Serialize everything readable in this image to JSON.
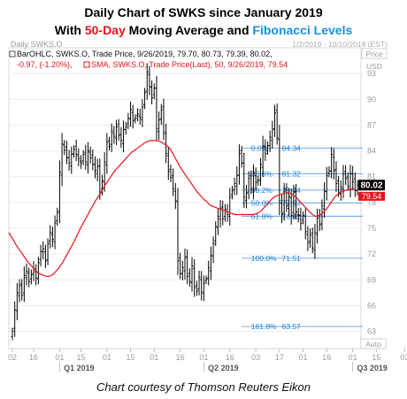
{
  "header": {
    "line1": "Daily Chart of SWKS since January 2019",
    "line2_pre": "With ",
    "line2_ma": "50-Day",
    "line2_mid": " Moving Average and ",
    "line2_fib": "Fibonacci Levels"
  },
  "caption": "Chart courtesy of Thomson Reuters Eikon",
  "chart_data": {
    "type": "ohlc",
    "instrument": "Daily SWKS.O",
    "date_range": "1/2/2019 - 10/10/2019 (EST)",
    "price_button": "Price",
    "currency": "USD",
    "auto_label": "Auto",
    "legend": [
      {
        "name": "BarOHLC",
        "text": "BarOHLC, SWKS.O, Trade Price, 9/26/2019, 79.70, 80.73, 79.39, 80.02,",
        "text2": "-0.97, (-1.20%),",
        "color": "#000000"
      },
      {
        "name": "SMA",
        "text": "SMA, SWKS.O, Trade Price(Last), 50, 9/26/2019, 79.54",
        "color": "#e8141a"
      }
    ],
    "ylim": [
      61,
      96
    ],
    "y_ticks": [
      63,
      66,
      69,
      72,
      75,
      78,
      81,
      84,
      87,
      90,
      93
    ],
    "x_ticks": [
      {
        "label": "02",
        "idx": 0
      },
      {
        "label": "16",
        "idx": 9
      },
      {
        "label": "01",
        "idx": 20
      },
      {
        "label": "15",
        "idx": 29
      },
      {
        "label": "01",
        "idx": 40
      },
      {
        "label": "15",
        "idx": 50
      },
      {
        "label": "01",
        "idx": 60
      },
      {
        "label": "16",
        "idx": 71
      },
      {
        "label": "01",
        "idx": 81
      },
      {
        "label": "16",
        "idx": 92
      },
      {
        "label": "03",
        "idx": 103
      },
      {
        "label": "17",
        "idx": 113
      },
      {
        "label": "01",
        "idx": 123
      },
      {
        "label": "16",
        "idx": 133
      },
      {
        "label": "01",
        "idx": 144
      },
      {
        "label": "15",
        "idx": 154
      },
      {
        "label": "03",
        "idx": 166
      },
      {
        "label": "16",
        "idx": 176
      },
      {
        "label": "01",
        "idx": 187
      }
    ],
    "quarter_labels": [
      {
        "label": "Q1 2019",
        "idx": 20
      },
      {
        "label": "Q2 2019",
        "idx": 81
      },
      {
        "label": "Q3 2019",
        "idx": 144
      }
    ],
    "last_price": "80.02",
    "sma_last": "79.54",
    "fib_levels": [
      {
        "pct": "0.0%",
        "value": "84.34",
        "y": 84.34
      },
      {
        "pct": "23.6%",
        "value": "81.32",
        "y": 81.32
      },
      {
        "pct": "38.2%",
        "value": "79.44",
        "y": 79.44
      },
      {
        "pct": "50.0%",
        "value": "77.93",
        "y": 77.93
      },
      {
        "pct": "61.8%",
        "value": "76.41",
        "y": 76.41
      },
      {
        "pct": "100.0%",
        "value": "71.51",
        "y": 71.51
      },
      {
        "pct": "161.8%",
        "value": "63.57",
        "y": 63.57
      }
    ],
    "close": [
      63,
      65.5,
      67.5,
      68.3,
      67.2,
      69.5,
      70,
      68.8,
      69.6,
      70.3,
      69.2,
      71,
      72.3,
      72.6,
      71.2,
      73.2,
      74.5,
      73.7,
      75.6,
      76.8,
      81.5,
      84.8,
      84.1,
      83.2,
      82.6,
      83.6,
      84.2,
      83.6,
      83.1,
      82.6,
      83.6,
      82.7,
      84,
      83.2,
      82.4,
      81.7,
      82.2,
      79.2,
      80.5,
      82.7,
      85,
      84.5,
      86.3,
      85.7,
      86.8,
      85.8,
      85.2,
      86.5,
      86.8,
      87.8,
      88.8,
      87.5,
      87.8,
      88.3,
      87.9,
      89.1,
      90.8,
      93.2,
      91.5,
      90.2,
      91.3,
      86.6,
      87.6,
      88.8,
      86.2,
      83.7,
      81.6,
      80.9,
      79.6,
      78.2,
      71.2,
      69.7,
      70.4,
      71.6,
      69.4,
      68.8,
      70.6,
      68.1,
      67.7,
      69.3,
      67.6,
      68.6,
      69.1,
      70.4,
      71.8,
      73.2,
      75.2,
      76.4,
      77.3,
      76.1,
      77.2,
      76.6,
      78.6,
      79.4,
      80.2,
      81.2,
      83.7,
      82.6,
      78.6,
      79.1,
      80.8,
      79.6,
      81.4,
      80.3,
      80.5,
      82.4,
      84.6,
      83.7,
      84.6,
      85.6,
      86.5,
      88.4,
      85.5,
      78.2,
      76.6,
      79.3,
      77.6,
      78.7,
      76.5,
      79.2,
      76.9,
      76.5,
      75.6,
      76.5,
      74.6,
      73.3,
      74.2,
      72.7,
      74.5,
      76.2,
      75.4,
      77.6,
      79.3,
      81.1,
      81.7,
      83.6,
      81.7,
      80.2,
      79.2,
      79.8,
      81.3,
      80.8,
      79.9,
      81.4,
      80.4,
      79.4,
      80.02
    ],
    "sma": [
      74.5,
      74.0,
      73.6,
      73.1,
      72.7,
      72.3,
      71.9,
      71.5,
      71.1,
      70.8,
      70.5,
      70.2,
      69.9,
      69.7,
      69.6,
      69.5,
      69.4,
      69.4,
      69.5,
      69.7,
      70.0,
      70.3,
      70.7,
      71.1,
      71.6,
      72.1,
      72.6,
      73.1,
      73.6,
      74.2,
      74.8,
      75.3,
      75.8,
      76.3,
      76.8,
      77.3,
      77.8,
      78.3,
      78.7,
      79.1,
      79.6,
      80.1,
      80.5,
      80.9,
      81.3,
      81.7,
      82.0,
      82.3,
      82.6,
      82.9,
      83.2,
      83.5,
      83.8,
      84.0,
      84.2,
      84.4,
      84.6,
      84.8,
      85.0,
      85.1,
      85.2,
      85.2,
      85.2,
      85.2,
      85.1,
      85.0,
      84.8,
      84.6,
      84.4,
      84.0,
      83.5,
      83.0,
      82.5,
      82.0,
      81.6,
      81.2,
      80.8,
      80.4,
      80.0,
      79.6,
      79.2,
      78.9,
      78.6,
      78.3,
      78.1,
      77.8,
      77.6,
      77.5,
      77.4,
      77.3,
      77.2,
      77.1,
      77.0,
      76.9,
      76.8,
      76.7,
      76.6,
      76.6,
      76.6,
      76.6,
      76.6,
      76.6,
      76.6,
      76.6,
      76.6,
      76.7,
      76.8,
      77.0,
      77.3,
      77.6,
      77.9,
      78.2,
      78.5,
      78.7,
      78.8,
      78.9,
      79.0,
      79.1,
      79.1,
      79.1,
      79.0,
      78.8,
      78.6,
      78.3,
      78.0,
      77.7,
      77.4,
      77.1,
      76.8,
      76.6,
      76.4,
      76.4,
      76.5,
      76.7,
      77.0,
      77.3,
      77.7,
      78.1,
      78.5,
      78.8,
      79.0,
      79.2,
      79.3,
      79.4,
      79.5,
      79.5,
      79.6,
      79.54
    ],
    "sma_idx": [
      0,
      1,
      2,
      3,
      4,
      5,
      6,
      7,
      8,
      9,
      10,
      11,
      12,
      13,
      14,
      15,
      16,
      17,
      18,
      19,
      20,
      21,
      22,
      23,
      24,
      25,
      26,
      27,
      28,
      29,
      30,
      31,
      32,
      33,
      34,
      35,
      36,
      37,
      38,
      39,
      40,
      41,
      42,
      43,
      44,
      45,
      46,
      47,
      48,
      49,
      50,
      51,
      52,
      53,
      54,
      55,
      56,
      57,
      58,
      59,
      60,
      61,
      62,
      63,
      64,
      65,
      66,
      67,
      68,
      69,
      70,
      71,
      72,
      73,
      74,
      75,
      76,
      77,
      78,
      79,
      80,
      81,
      82,
      83,
      84,
      85,
      86,
      87,
      88,
      89,
      90,
      91,
      92,
      93,
      94,
      95,
      96,
      97,
      98,
      99,
      100,
      101,
      102,
      103,
      104,
      105,
      106,
      107,
      108,
      109,
      110,
      111,
      112,
      113,
      114,
      115,
      116,
      117,
      118,
      119,
      120,
      121,
      122,
      123,
      124,
      125,
      126,
      127,
      128,
      129,
      130,
      131,
      132,
      133,
      134,
      135,
      136,
      137,
      138,
      139,
      140,
      141,
      142,
      143,
      144,
      145,
      146,
      147,
      148
    ]
  }
}
